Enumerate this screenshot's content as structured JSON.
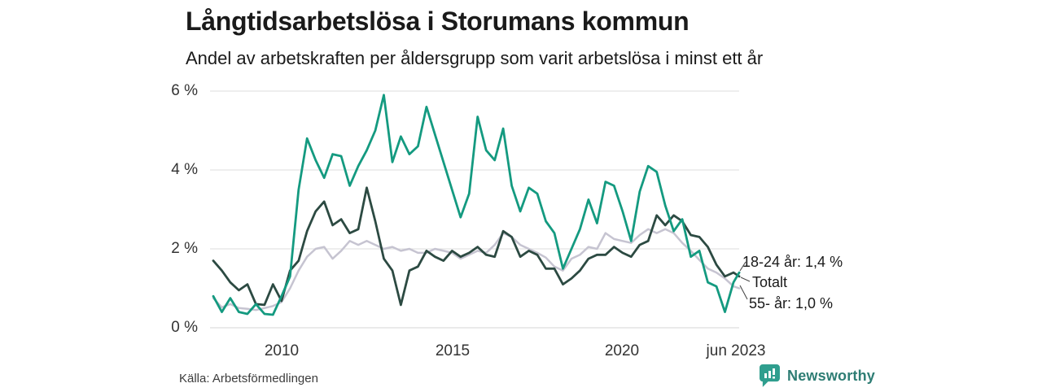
{
  "header": {
    "title": "Långtidsarbetslösa i Storumans kommun",
    "subtitle": "Andel av arbetskraften per åldersgrupp som varit arbetslösa i minst ett år"
  },
  "footer": {
    "source": "Källa: Arbetsförmedlingen",
    "brand": "Newsworthy",
    "logo_icon": "bar-chart-speech-bubble-icon",
    "brand_color": "#2e7d74",
    "icon_color": "#2f9e8e"
  },
  "chart_data": {
    "type": "line",
    "title": "Långtidsarbetslösa i Storumans kommun",
    "subtitle": "Andel av arbetskraften per åldersgrupp som varit arbetslösa i minst ett år",
    "unit": "% av arbetskraften",
    "grid": "horizontal",
    "legend_position": "end-of-line-annotations",
    "ylim": [
      0,
      6.2
    ],
    "xlim": [
      2008,
      2023.5
    ],
    "yticks": [
      "6 %",
      "4 %",
      "2 %",
      "0 %"
    ],
    "xticks": [
      "2010",
      "2015",
      "2020",
      "jun 2023"
    ],
    "annotations": [
      {
        "label": "18-24 år: 1,4 %",
        "series": "18-24 år"
      },
      {
        "label": "Totalt",
        "series": "Totalt"
      },
      {
        "label": "55- år: 1,0 %",
        "series": "55- år"
      }
    ],
    "x": [
      2008,
      2008.25,
      2008.5,
      2008.75,
      2009,
      2009.25,
      2009.5,
      2009.75,
      2010,
      2010.25,
      2010.5,
      2010.75,
      2011,
      2011.25,
      2011.5,
      2011.75,
      2012,
      2012.25,
      2012.5,
      2012.75,
      2013,
      2013.25,
      2013.5,
      2013.75,
      2014,
      2014.25,
      2014.5,
      2014.75,
      2015,
      2015.25,
      2015.5,
      2015.75,
      2016,
      2016.25,
      2016.5,
      2016.75,
      2017,
      2017.25,
      2017.5,
      2017.75,
      2018,
      2018.25,
      2018.5,
      2018.75,
      2019,
      2019.25,
      2019.5,
      2019.75,
      2020,
      2020.25,
      2020.5,
      2020.75,
      2021,
      2021.25,
      2021.5,
      2021.75,
      2022,
      2022.25,
      2022.5,
      2022.75,
      2023,
      2023.25,
      2023.42
    ],
    "series": [
      {
        "id": "55-ar",
        "name": "55- år",
        "color": "#c6c4d1",
        "width": 2.5,
        "final_value": "1,0 %",
        "values": [
          0.75,
          0.52,
          0.6,
          0.5,
          0.48,
          0.45,
          0.5,
          0.55,
          0.65,
          1.0,
          1.45,
          1.8,
          2.0,
          2.05,
          1.75,
          1.95,
          2.2,
          2.1,
          2.2,
          2.1,
          2.0,
          2.05,
          1.95,
          2.0,
          1.9,
          1.9,
          2.0,
          1.95,
          1.9,
          1.75,
          1.85,
          1.95,
          1.9,
          2.1,
          2.4,
          2.3,
          2.1,
          2.0,
          1.9,
          1.78,
          1.55,
          1.45,
          1.75,
          1.85,
          2.05,
          2.0,
          2.4,
          2.25,
          2.2,
          2.15,
          2.35,
          2.5,
          2.4,
          2.5,
          2.4,
          2.15,
          1.95,
          1.72,
          1.5,
          1.4,
          1.25,
          1.05,
          1.0
        ]
      },
      {
        "id": "totalt",
        "name": "Totalt",
        "color": "#2c4a42",
        "width": 2.8,
        "final_value": "1,3 %",
        "values": [
          1.7,
          1.45,
          1.15,
          0.95,
          1.1,
          0.6,
          0.58,
          1.1,
          0.68,
          1.45,
          1.7,
          2.45,
          2.95,
          3.2,
          2.6,
          2.75,
          2.4,
          2.5,
          3.55,
          2.7,
          1.75,
          1.45,
          0.58,
          1.45,
          1.55,
          1.95,
          1.8,
          1.7,
          1.95,
          1.8,
          1.9,
          2.05,
          1.85,
          1.8,
          2.45,
          2.3,
          1.8,
          1.95,
          1.85,
          1.5,
          1.5,
          1.1,
          1.25,
          1.45,
          1.75,
          1.85,
          1.85,
          2.05,
          1.9,
          1.8,
          2.1,
          2.2,
          2.85,
          2.6,
          2.85,
          2.7,
          2.35,
          2.3,
          2.05,
          1.6,
          1.3,
          1.4,
          1.3
        ]
      },
      {
        "id": "18-24-ar",
        "name": "18-24 år",
        "color": "#149a80",
        "width": 2.8,
        "final_value": "1,4 %",
        "values": [
          0.8,
          0.4,
          0.75,
          0.4,
          0.35,
          0.6,
          0.35,
          0.33,
          0.8,
          1.3,
          3.5,
          4.8,
          4.25,
          3.8,
          4.4,
          4.35,
          3.6,
          4.1,
          4.5,
          5.0,
          5.9,
          4.2,
          4.85,
          4.4,
          4.6,
          5.6,
          4.9,
          4.2,
          3.5,
          2.8,
          3.4,
          5.35,
          4.5,
          4.25,
          5.05,
          3.6,
          2.95,
          3.55,
          3.4,
          2.7,
          2.4,
          1.5,
          2.0,
          2.5,
          3.25,
          2.65,
          3.7,
          3.6,
          2.95,
          2.2,
          3.45,
          4.1,
          3.95,
          3.1,
          2.45,
          2.75,
          1.8,
          1.95,
          1.15,
          1.05,
          0.4,
          1.15,
          1.4
        ]
      }
    ]
  }
}
